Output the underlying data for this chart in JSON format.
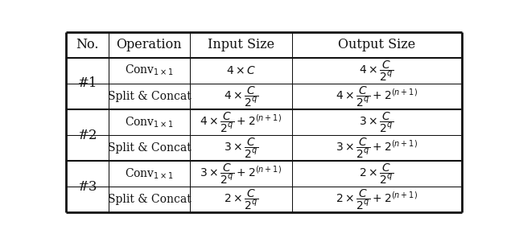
{
  "col_headers": [
    "No.",
    "Operation",
    "Input Size",
    "Output Size"
  ],
  "background_color": "#ffffff",
  "text_color": "#111111",
  "fontsize_header": 11.5,
  "fontsize_body": 10,
  "fontsize_no": 12,
  "groups": [
    {
      "no": "#1",
      "cells": [
        {
          "op": "Conv$_{1\\times1}$",
          "inp": "$4 \\times C$",
          "out": "$4 \\times \\dfrac{C}{2^q}$"
        },
        {
          "op": "Split & Concat",
          "inp": "$4 \\times \\dfrac{C}{2^q}$",
          "out": "$4 \\times \\dfrac{C}{2^q} + 2^{(n+1)}$"
        }
      ]
    },
    {
      "no": "#2",
      "cells": [
        {
          "op": "Conv$_{1\\times1}$",
          "inp": "$4 \\times \\dfrac{C}{2^q} + 2^{(n+1)}$",
          "out": "$3 \\times \\dfrac{C}{2^q}$"
        },
        {
          "op": "Split & Concat",
          "inp": "$3 \\times \\dfrac{C}{2^q}$",
          "out": "$3 \\times \\dfrac{C}{2^q} + 2^{(n+1)}$"
        }
      ]
    },
    {
      "no": "#3",
      "cells": [
        {
          "op": "Conv$_{1\\times1}$",
          "inp": "$3 \\times \\dfrac{C}{2^q} + 2^{(n+1)}$",
          "out": "$2 \\times \\dfrac{C}{2^q}$"
        },
        {
          "op": "Split & Concat",
          "inp": "$2 \\times \\dfrac{C}{2^q}$",
          "out": "$2 \\times \\dfrac{C}{2^q} + 2^{(n+1)}$"
        }
      ]
    }
  ]
}
